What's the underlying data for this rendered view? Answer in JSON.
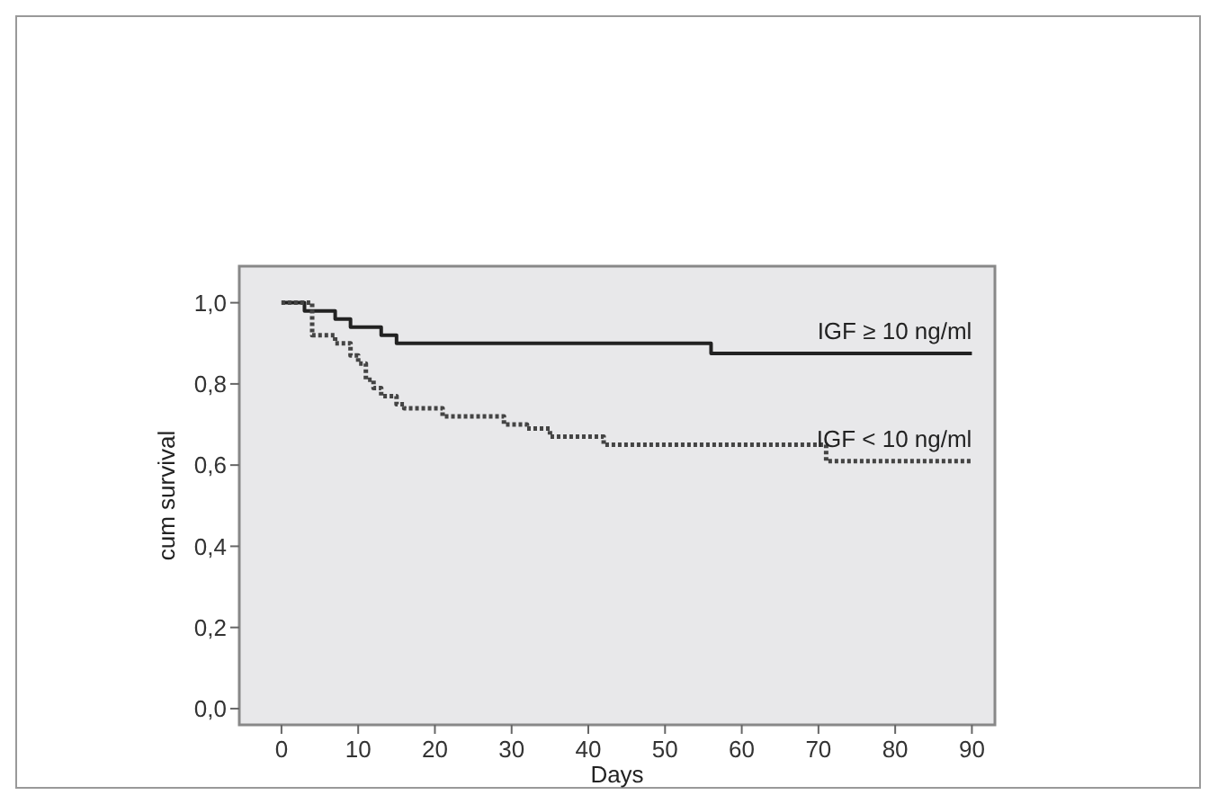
{
  "chart_data": {
    "type": "step",
    "xlabel": "Days",
    "ylabel": "cum survival",
    "xlim": [
      -5.5,
      93
    ],
    "ylim": [
      -0.04,
      1.09
    ],
    "xticks": [
      0,
      10,
      20,
      30,
      40,
      50,
      60,
      70,
      80,
      90
    ],
    "yticks": [
      {
        "value": 0,
        "label": "0,0"
      },
      {
        "value": 0.2,
        "label": "0,2"
      },
      {
        "value": 0.4,
        "label": "0,4"
      },
      {
        "value": 0.6,
        "label": "0,6"
      },
      {
        "value": 0.8,
        "label": "0,8"
      },
      {
        "value": 1,
        "label": "1,0"
      }
    ],
    "grid": false,
    "series": [
      {
        "name": "IGF ≥ 10 ng/ml",
        "color": "#222222",
        "line_style": "solid",
        "x": [
          0,
          3,
          7,
          9,
          13,
          15,
          56,
          90
        ],
        "values": [
          1,
          0.98,
          0.96,
          0.94,
          0.92,
          0.9,
          0.875,
          0.875
        ]
      },
      {
        "name": "IGF < 10 ng/ml",
        "color": "#444444",
        "line_style": "dotted",
        "x": [
          0,
          4,
          7,
          9,
          10,
          11,
          12,
          13,
          15,
          16,
          21,
          29,
          32,
          35,
          42,
          71,
          90
        ],
        "values": [
          1,
          0.92,
          0.9,
          0.87,
          0.85,
          0.81,
          0.79,
          0.77,
          0.75,
          0.74,
          0.72,
          0.7,
          0.69,
          0.67,
          0.65,
          0.61,
          0.61
        ]
      }
    ]
  }
}
